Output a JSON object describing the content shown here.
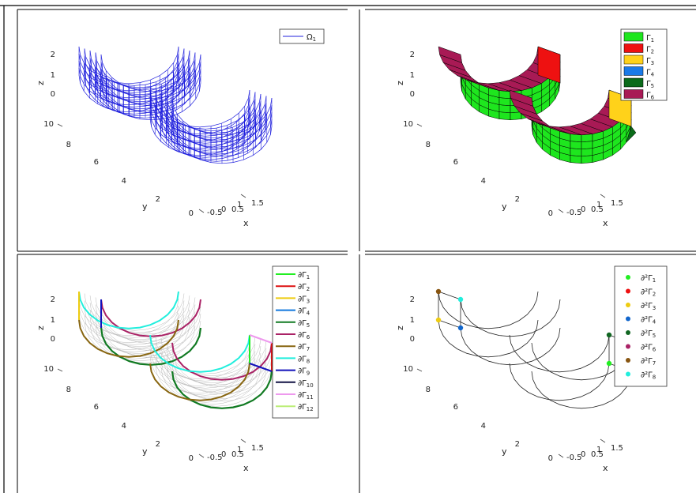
{
  "figure": {
    "layout": "2x2 grid of 3D MATLAB-style plots"
  },
  "chart_data": [
    {
      "type": "3d-wireframe",
      "xlabel": "x",
      "ylabel": "y",
      "zlabel": "z",
      "xticks": [
        "-0.5",
        "0",
        "0.5",
        "1",
        "1.5"
      ],
      "yticks": [
        "0",
        "2",
        "4",
        "6",
        "8",
        "10"
      ],
      "zticks": [
        "0",
        "1",
        "2"
      ],
      "xlim": [
        -0.5,
        1.5
      ],
      "ylim": [
        0,
        10
      ],
      "zlim": [
        0,
        2
      ],
      "legend_position": "top-right",
      "series": [
        {
          "name": "Ω",
          "sub": "1",
          "color": "#2020dd"
        }
      ]
    },
    {
      "type": "3d-surface",
      "xlabel": "x",
      "ylabel": "y",
      "zlabel": "z",
      "xticks": [
        "-0.5",
        "0",
        "0.5",
        "1",
        "1.5"
      ],
      "yticks": [
        "0",
        "2",
        "4",
        "6",
        "8",
        "10"
      ],
      "zticks": [
        "0",
        "1",
        "2"
      ],
      "legend_position": "top-right",
      "series": [
        {
          "name": "Γ",
          "sub": "1",
          "color": "#1ee61e"
        },
        {
          "name": "Γ",
          "sub": "2",
          "color": "#ee1111"
        },
        {
          "name": "Γ",
          "sub": "3",
          "color": "#ffd21a"
        },
        {
          "name": "Γ",
          "sub": "4",
          "color": "#1a7ae8"
        },
        {
          "name": "Γ",
          "sub": "5",
          "color": "#0b6b1a"
        },
        {
          "name": "Γ",
          "sub": "6",
          "color": "#a81a55"
        }
      ]
    },
    {
      "type": "3d-curves",
      "xlabel": "x",
      "ylabel": "y",
      "zlabel": "z",
      "xticks": [
        "-0.5",
        "0",
        "0.5",
        "1",
        "1.5"
      ],
      "yticks": [
        "0",
        "2",
        "4",
        "6",
        "8",
        "10"
      ],
      "zticks": [
        "0",
        "1",
        "2"
      ],
      "legend_position": "top-right",
      "series": [
        {
          "name": "∂Γ",
          "sub": "1",
          "color": "#22ee22"
        },
        {
          "name": "∂Γ",
          "sub": "2",
          "color": "#dd1111"
        },
        {
          "name": "∂Γ",
          "sub": "3",
          "color": "#eecc11"
        },
        {
          "name": "∂Γ",
          "sub": "4",
          "color": "#1177dd"
        },
        {
          "name": "∂Γ",
          "sub": "5",
          "color": "#117a22"
        },
        {
          "name": "∂Γ",
          "sub": "6",
          "color": "#aa2266"
        },
        {
          "name": "∂Γ",
          "sub": "7",
          "color": "#886611"
        },
        {
          "name": "∂Γ",
          "sub": "8",
          "color": "#22eedd"
        },
        {
          "name": "∂Γ",
          "sub": "9",
          "color": "#1111bb"
        },
        {
          "name": "∂Γ",
          "sub": "10",
          "color": "#111144"
        },
        {
          "name": "∂Γ",
          "sub": "11",
          "color": "#ee99ee"
        },
        {
          "name": "∂Γ",
          "sub": "12",
          "color": "#bbee77"
        }
      ]
    },
    {
      "type": "3d-scatter",
      "xlabel": "x",
      "ylabel": "y",
      "zlabel": "z",
      "xticks": [
        "-0.5",
        "0",
        "0.5",
        "1",
        "1.5"
      ],
      "yticks": [
        "0",
        "2",
        "4",
        "6",
        "8",
        "10"
      ],
      "zticks": [
        "0",
        "1",
        "2"
      ],
      "legend_position": "top-right",
      "series": [
        {
          "name": "∂²Γ",
          "sub": "1",
          "color": "#22ee22"
        },
        {
          "name": "∂²Γ",
          "sub": "2",
          "color": "#ee1111"
        },
        {
          "name": "∂²Γ",
          "sub": "3",
          "color": "#eecc11"
        },
        {
          "name": "∂²Γ",
          "sub": "4",
          "color": "#1166cc"
        },
        {
          "name": "∂²Γ",
          "sub": "5",
          "color": "#116622"
        },
        {
          "name": "∂²Γ",
          "sub": "6",
          "color": "#aa2266"
        },
        {
          "name": "∂²Γ",
          "sub": "7",
          "color": "#885511"
        },
        {
          "name": "∂²Γ",
          "sub": "8",
          "color": "#22eedd"
        }
      ]
    }
  ]
}
